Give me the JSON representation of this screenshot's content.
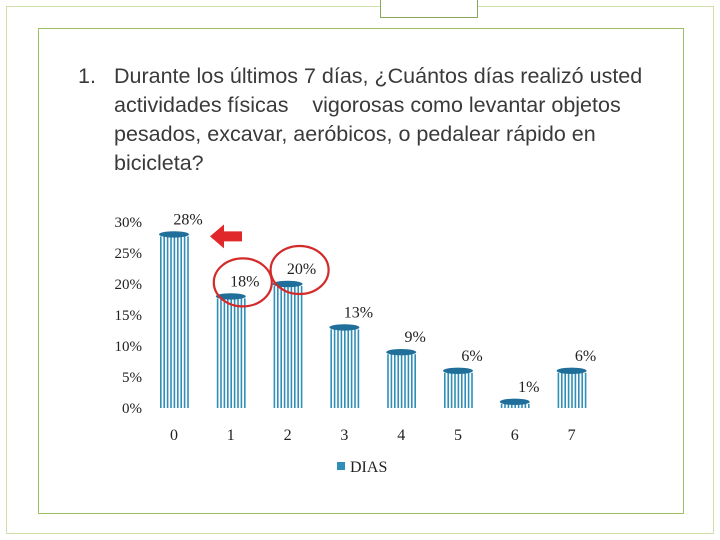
{
  "question": {
    "number": "1.",
    "text": "Durante los últimos 7 días, ¿Cuántos días realizó usted actividades físicas    vigorosas como levantar objetos pesados, excavar, aeróbicos, o pedalear rápido en bicicleta?"
  },
  "colors": {
    "bar": "#2f8fb8",
    "bar_top": "#1f6f9a",
    "circle": "#d42a2a",
    "arrow": "#e0282b",
    "frame": "#9dbf63"
  },
  "chart_data": {
    "type": "bar",
    "categories": [
      "0",
      "1",
      "2",
      "3",
      "4",
      "5",
      "6",
      "7"
    ],
    "series": [
      {
        "name": "DIAS",
        "values": [
          28,
          18,
          20,
          13,
          9,
          6,
          1,
          6
        ]
      }
    ],
    "data_labels": [
      "28%",
      "18%",
      "20%",
      "13%",
      "9%",
      "6%",
      "1%",
      "6%"
    ],
    "y_ticks": [
      "0%",
      "5%",
      "10%",
      "15%",
      "20%",
      "25%",
      "30%"
    ],
    "ylim": [
      0,
      30
    ],
    "legend": {
      "position": "bottom",
      "entries": [
        "DIAS"
      ]
    },
    "highlighted_categories": [
      "1",
      "2"
    ],
    "arrow_points_to": "0",
    "grid": false
  }
}
